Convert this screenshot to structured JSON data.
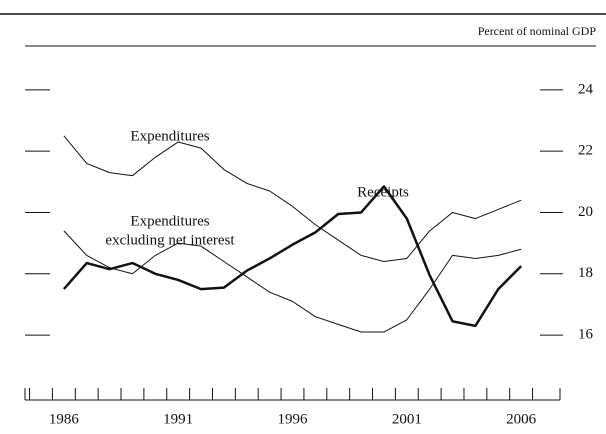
{
  "chart_data": {
    "type": "line",
    "y_label": "Percent of nominal GDP",
    "x": [
      1986,
      1987,
      1988,
      1989,
      1990,
      1991,
      1992,
      1993,
      1994,
      1995,
      1996,
      1997,
      1998,
      1999,
      2000,
      2001,
      2002,
      2003,
      2004,
      2005,
      2006
    ],
    "series": [
      {
        "name": "Expenditures",
        "color": "#111111",
        "width": 1,
        "values": [
          22.5,
          21.6,
          21.3,
          21.2,
          21.8,
          22.3,
          22.1,
          21.4,
          20.95,
          20.7,
          20.2,
          19.6,
          19.1,
          18.6,
          18.4,
          18.5,
          19.4,
          20.0,
          19.8,
          20.1,
          20.4
        ]
      },
      {
        "name": "Expenditures excluding net interest",
        "label_lines": [
          "Expenditures",
          "excluding net interest"
        ],
        "color": "#111111",
        "width": 1,
        "values": [
          19.4,
          18.6,
          18.2,
          18.0,
          18.6,
          19.0,
          18.9,
          18.4,
          17.9,
          17.4,
          17.1,
          16.6,
          16.35,
          16.1,
          16.1,
          16.5,
          17.5,
          18.6,
          18.5,
          18.6,
          18.8
        ]
      },
      {
        "name": "Receipts",
        "color": "#111111",
        "width": 2.5,
        "values": [
          17.5,
          18.35,
          18.15,
          18.35,
          18.0,
          17.8,
          17.5,
          17.55,
          18.1,
          18.5,
          18.95,
          19.35,
          19.95,
          20.0,
          20.85,
          19.8,
          17.95,
          16.45,
          16.3,
          17.5,
          18.25
        ]
      }
    ],
    "xlim": [
      1984.3,
      2007.7
    ],
    "xticks": [
      1986,
      1991,
      1996,
      2001,
      2006
    ],
    "minor_tick_step": 1,
    "ylim": [
      14.6,
      25.3
    ],
    "yticks": [
      16,
      18,
      20,
      22,
      24
    ]
  }
}
